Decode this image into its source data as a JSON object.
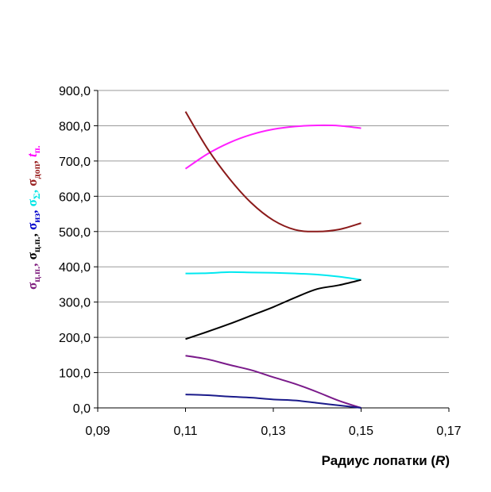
{
  "chart_data": {
    "type": "line",
    "xlabel_main": "Радиус лопатки (",
    "xlabel_var": "R",
    "xlabel_end": ")",
    "xlim": [
      0.09,
      0.17
    ],
    "ylim": [
      0,
      900
    ],
    "x_ticks": [
      "0,09",
      "0,11",
      "0,13",
      "0,15",
      "0,17"
    ],
    "x_tick_values": [
      0.09,
      0.11,
      0.13,
      0.15,
      0.17
    ],
    "y_ticks": [
      "0,0",
      "100,0",
      "200,0",
      "300,0",
      "400,0",
      "500,0",
      "600,0",
      "700,0",
      "800,0",
      "900,0"
    ],
    "y_tick_values": [
      0,
      100,
      200,
      300,
      400,
      500,
      600,
      700,
      800,
      900
    ],
    "grid": "horizontal",
    "ylabel_parts": [
      {
        "sym": "σ",
        "sub": "ц.п.",
        "sep": ", ",
        "color": "#7f1f7f"
      },
      {
        "sym": "σ",
        "sub": "ц.п.",
        "sep": ", ",
        "color": "#000000"
      },
      {
        "sym": "σ",
        "sub": "из",
        "sep": ", ",
        "color": "#0000cc"
      },
      {
        "sym": "σ",
        "sub": "Σ",
        "sep": ", ",
        "color": "#00e5e5"
      },
      {
        "sym": "σ",
        "sub": "доп",
        "sep": ", ",
        "color": "#9b2222"
      },
      {
        "sym": "t",
        "sub": "п.",
        "sep": "",
        "color": "#ff00ff"
      }
    ],
    "series": [
      {
        "color": "#ff20ff",
        "x": [
          0.11,
          0.115,
          0.12,
          0.125,
          0.13,
          0.135,
          0.14,
          0.145,
          0.15
        ],
        "y": [
          678,
          720,
          752,
          775,
          790,
          798,
          801,
          800,
          793
        ]
      },
      {
        "color": "#8b1a1a",
        "x": [
          0.11,
          0.115,
          0.12,
          0.125,
          0.13,
          0.135,
          0.14,
          0.145,
          0.15
        ],
        "y": [
          840,
          735,
          650,
          581,
          532,
          505,
          500,
          506,
          524
        ]
      },
      {
        "color": "#00e8f0",
        "x": [
          0.11,
          0.115,
          0.12,
          0.125,
          0.13,
          0.135,
          0.14,
          0.145,
          0.15
        ],
        "y": [
          381,
          382,
          385,
          384,
          383,
          381,
          378,
          372,
          363
        ]
      },
      {
        "color": "#000000",
        "x": [
          0.11,
          0.115,
          0.12,
          0.125,
          0.13,
          0.135,
          0.14,
          0.145,
          0.15
        ],
        "y": [
          195,
          216,
          238,
          262,
          286,
          313,
          337,
          348,
          363
        ]
      },
      {
        "color": "#7a1a8a",
        "x": [
          0.11,
          0.115,
          0.12,
          0.125,
          0.13,
          0.135,
          0.14,
          0.145,
          0.15
        ],
        "y": [
          148,
          138,
          122,
          107,
          87,
          68,
          45,
          20,
          0
        ]
      },
      {
        "color": "#1a1a8a",
        "x": [
          0.11,
          0.115,
          0.12,
          0.125,
          0.13,
          0.135,
          0.14,
          0.145,
          0.15
        ],
        "y": [
          38,
          36,
          32,
          29,
          24,
          21,
          14,
          7,
          0
        ]
      }
    ]
  }
}
